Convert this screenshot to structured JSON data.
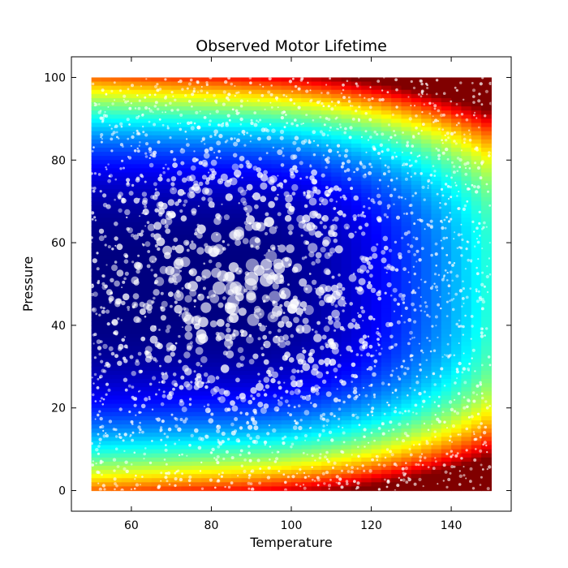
{
  "chart_data": {
    "type": "heatmap",
    "title": "Observed Motor Lifetime",
    "xlabel": "Temperature",
    "ylabel": "Pressure",
    "xlim": [
      45,
      155
    ],
    "ylim": [
      -5,
      105
    ],
    "x_ticks": [
      60,
      80,
      100,
      120,
      140
    ],
    "y_ticks": [
      0,
      20,
      40,
      60,
      80,
      100
    ],
    "heatmap_extent": {
      "x": [
        50,
        150
      ],
      "y": [
        0,
        100
      ]
    },
    "colormap": "jet",
    "grid": false,
    "legend": "none",
    "overlay": {
      "type": "scatter",
      "color": "#ffffff",
      "description": "lifetime observations; larger markers concentrated near Temperature 70-110, Pressure 30-70"
    }
  }
}
